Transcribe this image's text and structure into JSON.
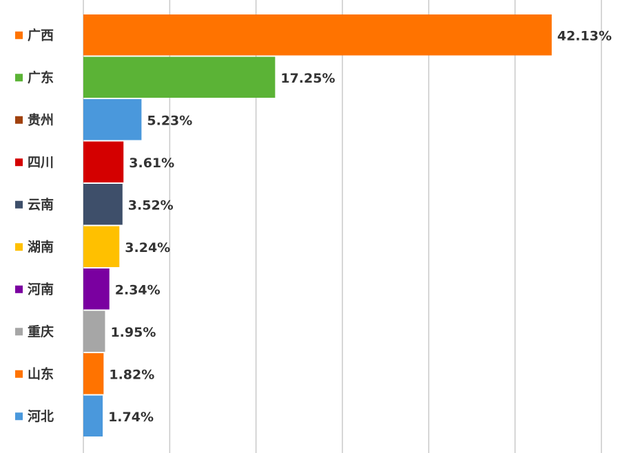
{
  "chart_data": {
    "type": "hbar",
    "categories": [
      "广西",
      "广东",
      "贵州",
      "四川",
      "云南",
      "湖南",
      "河南",
      "重庆",
      "山东",
      "河北"
    ],
    "values": [
      42.13,
      17.25,
      5.23,
      3.61,
      3.52,
      3.24,
      2.34,
      1.95,
      1.82,
      1.74
    ],
    "value_labels": [
      "42.13%",
      "17.25%",
      "5.23%",
      "3.61%",
      "3.52%",
      "3.24%",
      "2.34%",
      "1.95%",
      "1.82%",
      "1.74%"
    ],
    "colors": [
      "#ff7300",
      "#5bb336",
      "#4a98dc",
      "#d40000",
      "#3e4f6a",
      "#ffc000",
      "#7a00a0",
      "#a6a6a6",
      "#ff7300",
      "#4a98dc"
    ],
    "marker_colors": [
      "#ff7300",
      "#5bb336",
      "#a0410d",
      "#d40000",
      "#3e4f6a",
      "#ffc000",
      "#7a00a0",
      "#a6a6a6",
      "#ff7300",
      "#4a98dc"
    ],
    "xlim": [
      0,
      46.6
    ],
    "xticks": [
      0,
      7.77,
      15.53,
      23.3,
      31.07,
      38.83,
      46.6
    ],
    "grid": true
  }
}
